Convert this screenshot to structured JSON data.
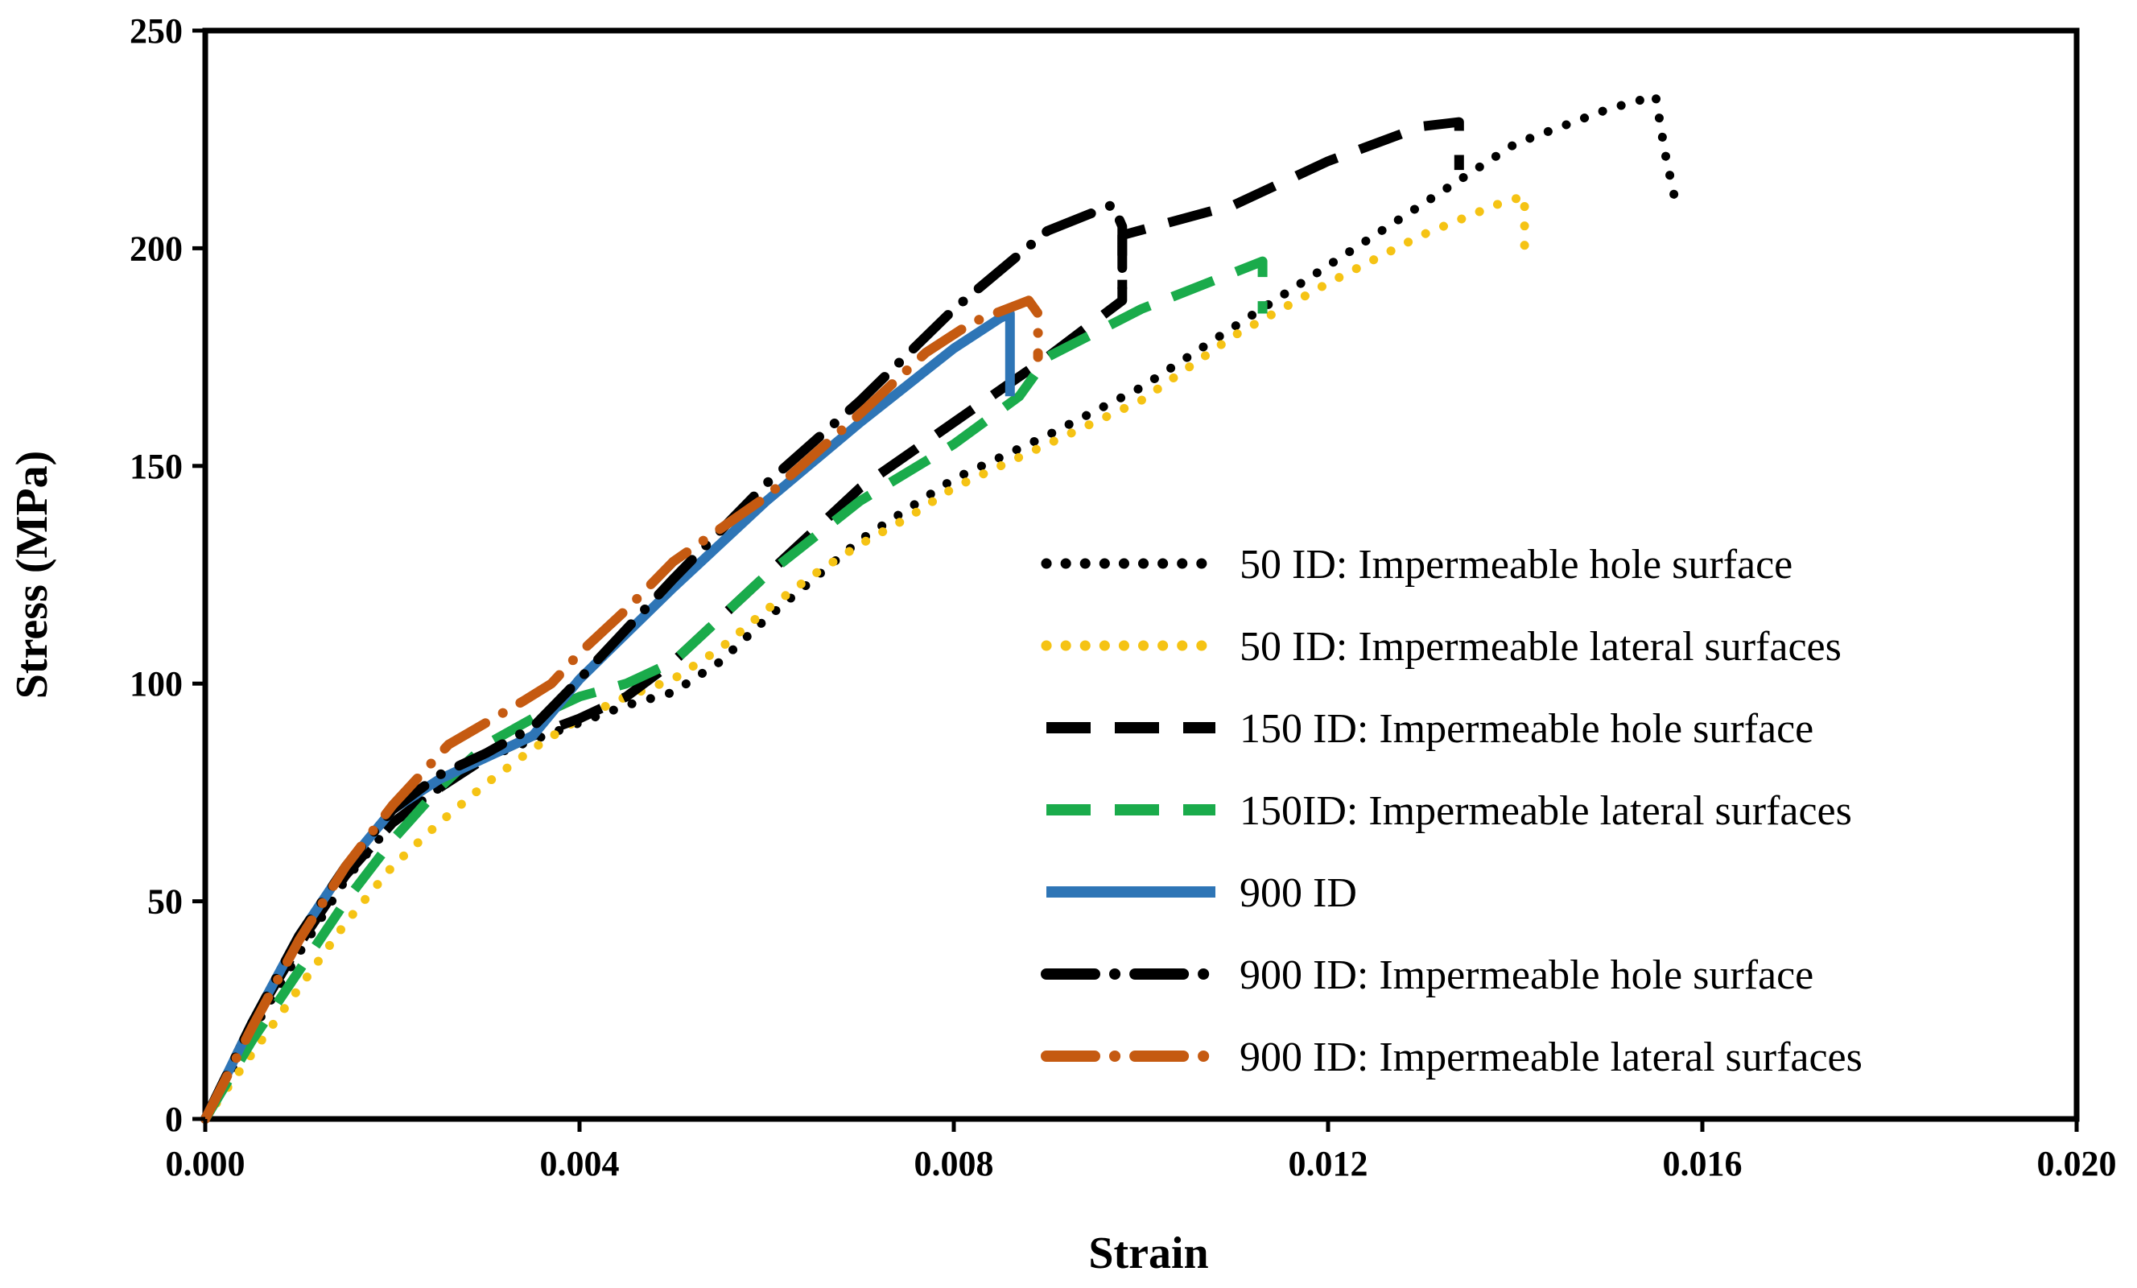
{
  "chart_data": {
    "type": "line",
    "title": "",
    "xlabel": "Strain",
    "ylabel": "Stress (MPa)",
    "xlim": [
      0,
      0.02
    ],
    "ylim": [
      0,
      250
    ],
    "x_ticks": [
      "0.000",
      "0.004",
      "0.008",
      "0.012",
      "0.016",
      "0.020"
    ],
    "y_ticks": [
      "0",
      "50",
      "100",
      "150",
      "200",
      "250"
    ],
    "grid": false,
    "legend_position": "right",
    "series": [
      {
        "name": "50 ID: Impermeable hole surface",
        "color": "#000000",
        "style": "dotted",
        "points": [
          [
            0,
            0
          ],
          [
            0.0005,
            20
          ],
          [
            0.001,
            38
          ],
          [
            0.0015,
            55
          ],
          [
            0.002,
            68
          ],
          [
            0.0025,
            76
          ],
          [
            0.003,
            83
          ],
          [
            0.0035,
            87
          ],
          [
            0.004,
            91
          ],
          [
            0.0045,
            95
          ],
          [
            0.005,
            98
          ],
          [
            0.0055,
            105
          ],
          [
            0.006,
            115
          ],
          [
            0.0065,
            124
          ],
          [
            0.007,
            133
          ],
          [
            0.0075,
            140
          ],
          [
            0.008,
            147
          ],
          [
            0.009,
            157
          ],
          [
            0.01,
            168
          ],
          [
            0.011,
            182
          ],
          [
            0.012,
            196
          ],
          [
            0.013,
            210
          ],
          [
            0.014,
            224
          ],
          [
            0.015,
            232
          ],
          [
            0.0155,
            235
          ],
          [
            0.0156,
            222
          ],
          [
            0.0157,
            212
          ]
        ]
      },
      {
        "name": "50 ID: Impermeable lateral surfaces",
        "color": "#f5c314",
        "style": "dotted",
        "points": [
          [
            0,
            0
          ],
          [
            0.0005,
            15
          ],
          [
            0.001,
            30
          ],
          [
            0.0015,
            45
          ],
          [
            0.002,
            58
          ],
          [
            0.0025,
            68
          ],
          [
            0.003,
            77
          ],
          [
            0.0035,
            85
          ],
          [
            0.004,
            92
          ],
          [
            0.0045,
            97
          ],
          [
            0.005,
            101
          ],
          [
            0.0055,
            108
          ],
          [
            0.006,
            117
          ],
          [
            0.0065,
            125
          ],
          [
            0.007,
            132
          ],
          [
            0.0075,
            138
          ],
          [
            0.008,
            145
          ],
          [
            0.009,
            155
          ],
          [
            0.01,
            165
          ],
          [
            0.011,
            180
          ],
          [
            0.012,
            192
          ],
          [
            0.013,
            203
          ],
          [
            0.0138,
            210
          ],
          [
            0.0141,
            212
          ],
          [
            0.0141,
            200
          ]
        ]
      },
      {
        "name": "150 ID: Impermeable hole surface",
        "color": "#000000",
        "style": "dashed",
        "points": [
          [
            0,
            0
          ],
          [
            0.0005,
            22
          ],
          [
            0.001,
            40
          ],
          [
            0.0015,
            56
          ],
          [
            0.002,
            68
          ],
          [
            0.0025,
            76
          ],
          [
            0.003,
            83
          ],
          [
            0.0035,
            88
          ],
          [
            0.004,
            92
          ],
          [
            0.0045,
            97
          ],
          [
            0.005,
            105
          ],
          [
            0.006,
            125
          ],
          [
            0.007,
            145
          ],
          [
            0.008,
            160
          ],
          [
            0.009,
            175
          ],
          [
            0.0098,
            188
          ],
          [
            0.0098,
            203
          ],
          [
            0.011,
            210
          ],
          [
            0.012,
            220
          ],
          [
            0.013,
            228
          ],
          [
            0.0134,
            229
          ],
          [
            0.0134,
            218
          ]
        ]
      },
      {
        "name": "150ID: Impermeable lateral surfaces",
        "color": "#1aab4b",
        "style": "dashed",
        "points": [
          [
            0,
            0
          ],
          [
            0.0005,
            18
          ],
          [
            0.001,
            34
          ],
          [
            0.0015,
            50
          ],
          [
            0.002,
            64
          ],
          [
            0.0025,
            76
          ],
          [
            0.003,
            86
          ],
          [
            0.0035,
            92
          ],
          [
            0.004,
            97
          ],
          [
            0.0045,
            100
          ],
          [
            0.005,
            105
          ],
          [
            0.0055,
            115
          ],
          [
            0.006,
            125
          ],
          [
            0.007,
            142
          ],
          [
            0.008,
            155
          ],
          [
            0.0087,
            166
          ],
          [
            0.009,
            175
          ],
          [
            0.01,
            186
          ],
          [
            0.0113,
            197
          ],
          [
            0.0113,
            185
          ]
        ]
      },
      {
        "name": "900 ID",
        "color": "#2e75b6",
        "style": "solid",
        "points": [
          [
            0,
            0
          ],
          [
            0.0005,
            22
          ],
          [
            0.001,
            42
          ],
          [
            0.0015,
            58
          ],
          [
            0.002,
            71
          ],
          [
            0.0025,
            78
          ],
          [
            0.003,
            83
          ],
          [
            0.0035,
            88
          ],
          [
            0.004,
            101
          ],
          [
            0.005,
            122
          ],
          [
            0.006,
            142
          ],
          [
            0.007,
            160
          ],
          [
            0.008,
            177
          ],
          [
            0.0085,
            184
          ],
          [
            0.0086,
            185
          ],
          [
            0.0086,
            166
          ]
        ]
      },
      {
        "name": " 900 ID: Impermeable hole surface",
        "color": "#000000",
        "style": "dashdot",
        "points": [
          [
            0,
            0
          ],
          [
            0.0005,
            22
          ],
          [
            0.001,
            42
          ],
          [
            0.0015,
            58
          ],
          [
            0.002,
            71
          ],
          [
            0.0025,
            79
          ],
          [
            0.003,
            84
          ],
          [
            0.0035,
            90
          ],
          [
            0.004,
            101
          ],
          [
            0.005,
            124
          ],
          [
            0.006,
            146
          ],
          [
            0.007,
            165
          ],
          [
            0.008,
            186
          ],
          [
            0.009,
            204
          ],
          [
            0.0097,
            210
          ],
          [
            0.0098,
            205
          ],
          [
            0.0098,
            190
          ]
        ]
      },
      {
        "name": "900 ID: Impermeable lateral surfaces",
        "color": "#c55a11",
        "style": "dashdot",
        "points": [
          [
            0,
            0
          ],
          [
            0.0005,
            21
          ],
          [
            0.001,
            41
          ],
          [
            0.0015,
            58
          ],
          [
            0.002,
            72
          ],
          [
            0.0023,
            79
          ],
          [
            0.0026,
            86
          ],
          [
            0.003,
            91
          ],
          [
            0.0034,
            96
          ],
          [
            0.0037,
            100
          ],
          [
            0.004,
            107
          ],
          [
            0.0045,
            117
          ],
          [
            0.005,
            128
          ],
          [
            0.006,
            143
          ],
          [
            0.007,
            162
          ],
          [
            0.0077,
            176
          ],
          [
            0.0082,
            183
          ],
          [
            0.0088,
            188
          ],
          [
            0.0089,
            185
          ],
          [
            0.0089,
            175
          ]
        ]
      }
    ]
  }
}
